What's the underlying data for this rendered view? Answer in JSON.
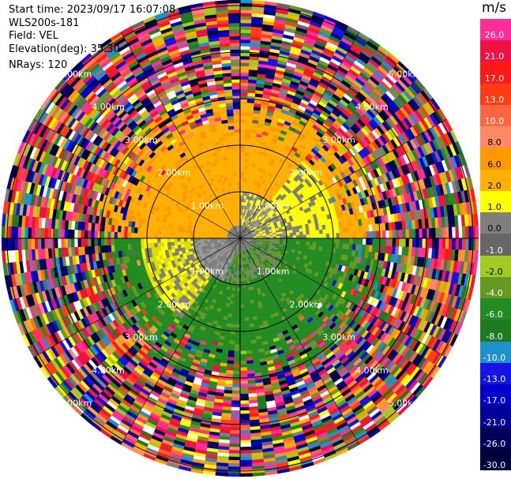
{
  "info": {
    "start_time": "Start time: 2023/09/17 16:07:08",
    "instrument": "WLS200s-181",
    "field": "Field: VEL",
    "elevation": "Elevation(deg): 35.30",
    "nrays": "NRays: 120"
  },
  "colorbar": {
    "unit": "m/s",
    "labels": [
      "26.0",
      "21.0",
      "17.0",
      "13.0",
      "10.0",
      "8.0",
      "6.0",
      "2.0",
      "1.0",
      "0.0",
      "-1.0",
      "-2.0",
      "-4.0",
      "-6.0",
      "-8.0",
      "-10.0",
      "-13.0",
      "-17.0",
      "-21.0",
      "-26.0",
      "-30.0"
    ],
    "colors": [
      "#ff2e9a",
      "#ee1144",
      "#ff1a1a",
      "#ff3c14",
      "#ff6640",
      "#ff8866",
      "#ff9900",
      "#ffb000",
      "#ffff00",
      "#7f7f7f",
      "#666666",
      "#a0cc22",
      "#669922",
      "#228b22",
      "#1f7a1f",
      "#1e90cc",
      "#1414e6",
      "#0000cc",
      "#000099",
      "#00005a",
      "#00003c"
    ]
  },
  "chart_data": {
    "type": "ppi",
    "field": "VEL",
    "units": "m/s",
    "nrays": 120,
    "elevation_deg": 35.3,
    "range_ring_labels": [
      "1.00km",
      "2.00km",
      "3.00km",
      "4.00km",
      "5.00km"
    ],
    "color_scale_boundaries": [
      -30,
      -26,
      -21,
      -17,
      -13,
      -10,
      -8,
      -6,
      -4,
      -2,
      -1,
      0,
      1,
      2,
      6,
      8,
      10,
      13,
      17,
      21,
      26
    ]
  }
}
